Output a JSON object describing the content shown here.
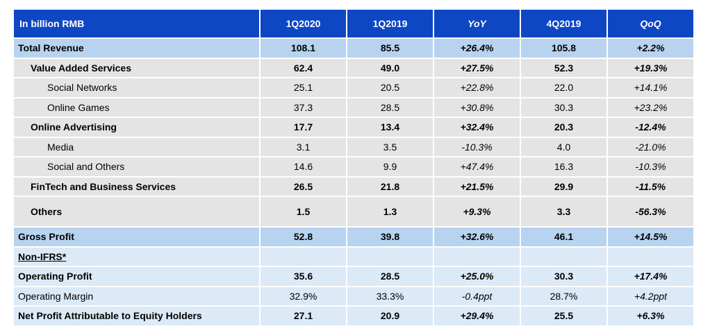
{
  "table": {
    "headers": {
      "label": "In billion RMB",
      "c1": "1Q2020",
      "c2": "1Q2019",
      "c3": "YoY",
      "c4": "4Q2019",
      "c5": "QoQ"
    },
    "rows": [
      {
        "label": "Total Revenue",
        "v1": "108.1",
        "v2": "85.5",
        "v3": "+26.4%",
        "v4": "105.8",
        "v5": "+2.2%"
      },
      {
        "label": "Value Added Services",
        "v1": "62.4",
        "v2": "49.0",
        "v3": "+27.5%",
        "v4": "52.3",
        "v5": "+19.3%"
      },
      {
        "label": "Social Networks",
        "v1": "25.1",
        "v2": "20.5",
        "v3": "+22.8%",
        "v4": "22.0",
        "v5": "+14.1%"
      },
      {
        "label": "Online Games",
        "v1": "37.3",
        "v2": "28.5",
        "v3": "+30.8%",
        "v4": "30.3",
        "v5": "+23.2%"
      },
      {
        "label": "Online Advertising",
        "v1": "17.7",
        "v2": "13.4",
        "v3": "+32.4%",
        "v4": "20.3",
        "v5": "-12.4%"
      },
      {
        "label": "Media",
        "v1": "3.1",
        "v2": "3.5",
        "v3": "-10.3%",
        "v4": "4.0",
        "v5": "-21.0%"
      },
      {
        "label": "Social and Others",
        "v1": "14.6",
        "v2": "9.9",
        "v3": "+47.4%",
        "v4": "16.3",
        "v5": "-10.3%"
      },
      {
        "label": "FinTech and Business Services",
        "v1": "26.5",
        "v2": "21.8",
        "v3": "+21.5%",
        "v4": "29.9",
        "v5": "-11.5%"
      },
      {
        "label": "Others",
        "v1": "1.5",
        "v2": "1.3",
        "v3": "+9.3%",
        "v4": "3.3",
        "v5": "-56.3%"
      },
      {
        "label": "Gross Profit",
        "v1": "52.8",
        "v2": "39.8",
        "v3": "+32.6%",
        "v4": "46.1",
        "v5": "+14.5%"
      },
      {
        "label": "Non-IFRS*",
        "v1": "",
        "v2": "",
        "v3": "",
        "v4": "",
        "v5": ""
      },
      {
        "label": "Operating Profit",
        "v1": "35.6",
        "v2": "28.5",
        "v3": "+25.0%",
        "v4": "30.3",
        "v5": "+17.4%"
      },
      {
        "label": "Operating Margin",
        "v1": "32.9%",
        "v2": "33.3%",
        "v3": "-0.4ppt",
        "v4": "28.7%",
        "v5": "+4.2ppt"
      },
      {
        "label": "Net Profit Attributable to Equity Holders",
        "v1": "27.1",
        "v2": "20.9",
        "v3": "+29.4%",
        "v4": "25.5",
        "v5": "+6.3%"
      }
    ]
  },
  "colors": {
    "header_bg": "#0e47c4",
    "highlight_row_bg": "#b7d3ef",
    "gray_row_bg": "#e4e4e4",
    "light_row_bg": "#dce9f6"
  }
}
